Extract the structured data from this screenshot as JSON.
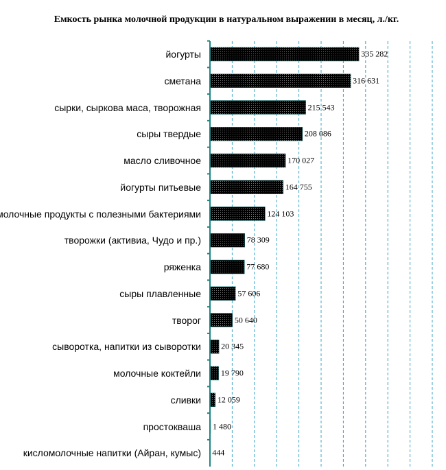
{
  "chart_data": {
    "type": "bar",
    "orientation": "horizontal",
    "title": "Емкость рынка молочной продукции в натуральном выражении в месяц, л./кг.",
    "categories": [
      "йогурты",
      "сметана",
      "сырки, сыркова маса, творожная",
      "сыры твердые",
      "масло сливочное",
      "йогурты питьевые",
      "молочные продукты с полезными бактериями",
      "творожки (активиа, Чудо и пр.)",
      "ряженка",
      "сыры плавленные",
      "творог",
      "сыворотка, напитки из сыворотки",
      "молочные коктейли",
      "сливки",
      "простокваша",
      "кисломолочные напитки (Айран, кумыс)"
    ],
    "values": [
      335282,
      316631,
      215543,
      208086,
      170027,
      164755,
      124103,
      78309,
      77680,
      57606,
      50640,
      20345,
      19790,
      12059,
      1480,
      444
    ],
    "value_labels": [
      "335 282",
      "316 631",
      "215 543",
      "208 086",
      "170 027",
      "164 755",
      "124 103",
      "78 309",
      "77 680",
      "57 606",
      "50 640",
      "20 345",
      "19 790",
      "12 059",
      "1 480",
      "444"
    ],
    "color": "#1e8585",
    "xlim": [
      0,
      500000
    ],
    "xticks": [
      0,
      50000,
      100000,
      150000,
      200000,
      250000,
      300000,
      350000,
      400000,
      450000,
      500000
    ],
    "grid": true
  }
}
